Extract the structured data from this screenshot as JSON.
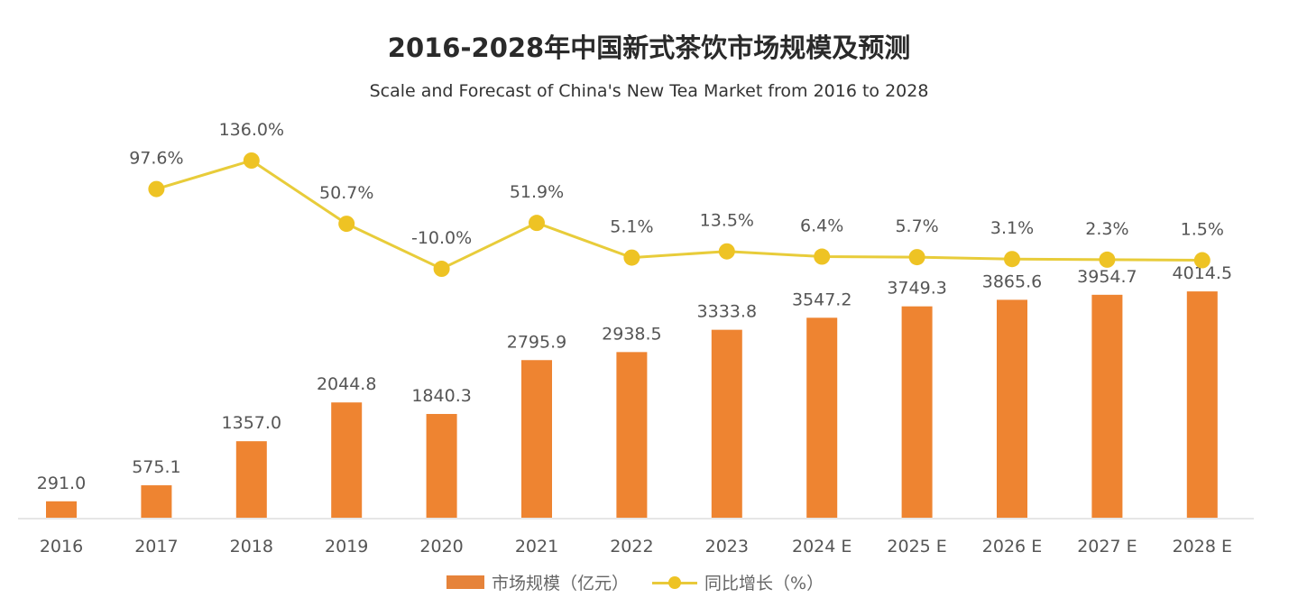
{
  "chart_data": {
    "type": "bar+line",
    "title": "2016-2028年中国新式茶饮市场规模及预测",
    "subtitle": "Scale and Forecast of China's New Tea Market from 2016 to 2028",
    "categories": [
      "2016",
      "2017",
      "2018",
      "2019",
      "2020",
      "2021",
      "2022",
      "2023",
      "2024 E",
      "2025 E",
      "2026 E",
      "2027 E",
      "2028 E"
    ],
    "series": [
      {
        "name": "市场规模（亿元）",
        "type": "bar",
        "color": "#EE8431",
        "values": [
          291.0,
          575.1,
          1357.0,
          2044.8,
          1840.3,
          2795.9,
          2938.5,
          3333.8,
          3547.2,
          3749.3,
          3865.6,
          3954.7,
          4014.5
        ],
        "labels": [
          "291.0",
          "575.1",
          "1357.0",
          "2044.8",
          "1840.3",
          "2795.9",
          "2938.5",
          "3333.8",
          "3547.2",
          "3749.3",
          "3865.6",
          "3954.7",
          "4014.5"
        ]
      },
      {
        "name": "同比增长（%）",
        "type": "line",
        "color": "#E8CC3A",
        "values": [
          null,
          97.6,
          136.0,
          50.7,
          -10.0,
          51.9,
          5.1,
          13.5,
          6.4,
          5.7,
          3.1,
          2.3,
          1.5
        ],
        "labels": [
          "",
          "97.6%",
          "136.0%",
          "50.7%",
          "-10.0%",
          "51.9%",
          "5.1%",
          "13.5%",
          "6.4%",
          "5.7%",
          "3.1%",
          "2.3%",
          "1.5%"
        ]
      }
    ],
    "legend": "bottom",
    "grid": false
  }
}
